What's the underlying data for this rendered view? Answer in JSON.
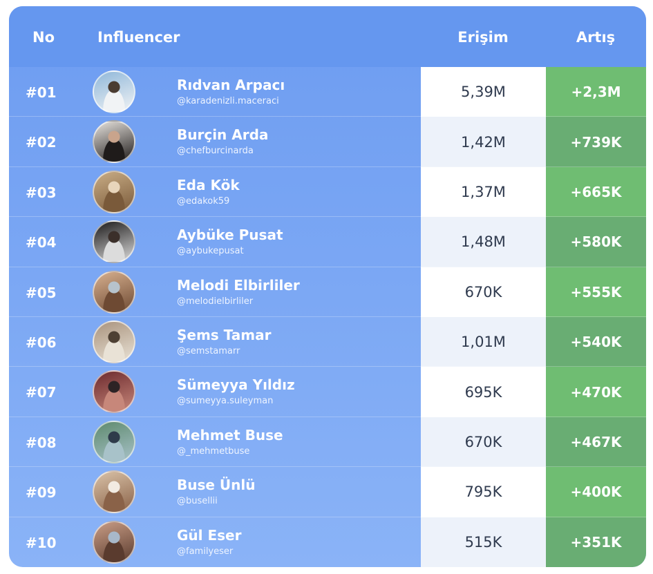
{
  "header": {
    "no": "No",
    "influencer": "Influencer",
    "reach": "Erişim",
    "growth": "Artış"
  },
  "rows": [
    {
      "rank": "#01",
      "name": "Rıdvan Arpacı",
      "handle": "@karadenizli.maceraci",
      "reach": "5,39M",
      "growth": "+2,3M",
      "avatar_colors": [
        "#8fb7d9",
        "#f1f3f5",
        "#4a3c31"
      ]
    },
    {
      "rank": "#02",
      "name": "Burçin Arda",
      "handle": "@chefburcinarda",
      "reach": "1,42M",
      "growth": "+739K",
      "avatar_colors": [
        "#e8e4df",
        "#1f1b1a",
        "#c9a48c"
      ]
    },
    {
      "rank": "#03",
      "name": "Eda Kök",
      "handle": "@edakok59",
      "reach": "1,37M",
      "growth": "+665K",
      "avatar_colors": [
        "#c9ad86",
        "#7a5a3a",
        "#e8d5bb"
      ]
    },
    {
      "rank": "#04",
      "name": "Aybüke Pusat",
      "handle": "@aybukepusat",
      "reach": "1,48M",
      "growth": "+580K",
      "avatar_colors": [
        "#1c1a1a",
        "#dcdcdc",
        "#3b2f2a"
      ]
    },
    {
      "rank": "#05",
      "name": "Melodi Elbirliler",
      "handle": "@melodielbirliler",
      "reach": "670K",
      "growth": "+555K",
      "avatar_colors": [
        "#d7b08f",
        "#6e4a33",
        "#b7c3cc"
      ]
    },
    {
      "rank": "#06",
      "name": "Şems Tamar",
      "handle": "@semstamarr",
      "reach": "1,01M",
      "growth": "+540K",
      "avatar_colors": [
        "#a9937d",
        "#e9e2d6",
        "#4e4033"
      ]
    },
    {
      "rank": "#07",
      "name": "Sümeyya Yıldız",
      "handle": "@sumeyya.suleyman",
      "reach": "695K",
      "growth": "+470K",
      "avatar_colors": [
        "#6c2a2e",
        "#c7877a",
        "#2d2325"
      ]
    },
    {
      "rank": "#08",
      "name": "Mehmet Buse",
      "handle": "@_mehmetbuse",
      "reach": "670K",
      "growth": "+467K",
      "avatar_colors": [
        "#5e8a6e",
        "#a8c2c9",
        "#2f3b4a"
      ]
    },
    {
      "rank": "#09",
      "name": "Buse Ünlü",
      "handle": "@busellii",
      "reach": "795K",
      "growth": "+400K",
      "avatar_colors": [
        "#d9c2a8",
        "#8a6248",
        "#f2ebe2"
      ]
    },
    {
      "rank": "#10",
      "name": "Gül Eser",
      "handle": "@familyeser",
      "reach": "515K",
      "growth": "+351K",
      "avatar_colors": [
        "#c99d86",
        "#5a3b2e",
        "#a8b8c9"
      ]
    }
  ]
}
